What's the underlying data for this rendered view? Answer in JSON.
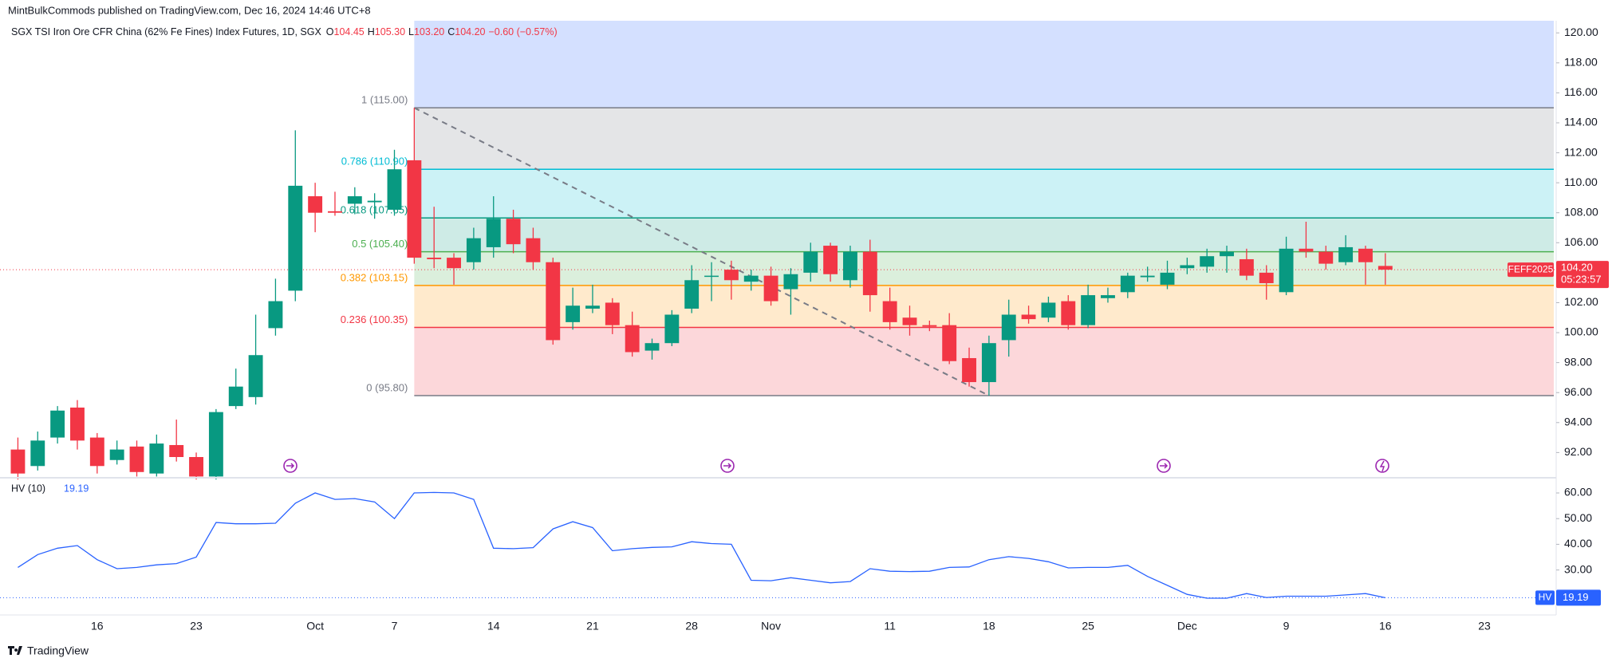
{
  "header": {
    "publisher": "MintBulkCommods published on TradingView.com, Dec 16, 2024 14:46 UTC+8",
    "logo": "TradingView"
  },
  "chart_data": [
    {
      "type": "candlestick",
      "title": "SGX TSI Iron Ore CFR China (62% Fe Fines) Index Futures, 1D, SGX",
      "legend_values": [
        {
          "key": "O",
          "value": "104.45"
        },
        {
          "key": "H",
          "value": "105.30"
        },
        {
          "key": "L",
          "value": "103.20"
        },
        {
          "key": "C",
          "value": "104.20"
        }
      ],
      "change": "−0.60 (−0.57%)",
      "up_color": "#089981",
      "down_color": "#f23645",
      "categories": [
        null,
        null,
        null,
        null,
        "16",
        null,
        null,
        null,
        null,
        "23",
        null,
        null,
        null,
        null,
        null,
        "Oct",
        null,
        null,
        null,
        "7",
        null,
        null,
        null,
        null,
        "14",
        null,
        null,
        null,
        null,
        "21",
        null,
        null,
        null,
        null,
        "28",
        null,
        null,
        null,
        "Nov",
        null,
        null,
        null,
        null,
        null,
        "11",
        null,
        null,
        null,
        null,
        "18",
        null,
        null,
        null,
        null,
        "25",
        null,
        null,
        null,
        null,
        "Dec",
        null,
        null,
        null,
        null,
        "9",
        null,
        null,
        null,
        null,
        "16",
        null,
        null,
        null,
        null,
        "23",
        null,
        null,
        null
      ],
      "open": [
        92.2,
        91.1,
        93.0,
        95.0,
        93.0,
        91.5,
        92.4,
        90.6,
        92.5,
        91.7,
        90.4,
        95.1,
        95.7,
        100.3,
        102.8,
        109.1,
        108.1,
        108.6,
        108.7,
        108.2,
        111.5,
        105.0,
        105.0,
        104.7,
        105.7,
        107.6,
        106.3,
        104.7,
        100.7,
        101.6,
        102.0,
        100.5,
        98.8,
        99.3,
        101.6,
        103.8,
        104.2,
        103.4,
        103.8,
        102.9,
        104.0,
        105.8,
        103.5,
        105.4,
        102.1,
        101.0,
        100.5,
        100.5,
        98.3,
        96.7,
        99.5,
        101.2,
        101.0,
        102.1,
        100.5,
        102.3,
        102.7,
        103.7,
        103.2,
        104.3,
        104.4,
        105.1,
        104.9,
        104.0,
        102.7,
        105.6,
        105.4,
        104.7,
        105.6,
        104.45,
        null,
        null,
        null,
        null,
        null,
        null,
        null,
        null
      ],
      "high": [
        93.0,
        93.4,
        95.1,
        95.5,
        93.3,
        92.8,
        92.8,
        93.2,
        94.2,
        92.0,
        94.9,
        97.6,
        101.2,
        103.6,
        113.5,
        110.0,
        109.4,
        109.7,
        109.3,
        112.2,
        115.0,
        108.4,
        105.3,
        107.0,
        109.1,
        108.2,
        107.0,
        105.0,
        103.0,
        103.2,
        102.3,
        101.4,
        99.6,
        101.5,
        104.5,
        104.7,
        104.8,
        104.2,
        104.4,
        104.3,
        106.0,
        106.0,
        105.8,
        106.2,
        103.0,
        101.8,
        100.8,
        101.3,
        99.0,
        99.8,
        102.2,
        101.8,
        102.4,
        102.5,
        103.2,
        103.0,
        104.0,
        104.4,
        104.8,
        105.0,
        105.6,
        105.8,
        105.6,
        104.5,
        106.4,
        107.4,
        105.8,
        106.5,
        105.8,
        105.3,
        null,
        null,
        null,
        null,
        null,
        null,
        null,
        null
      ],
      "low": [
        90.2,
        90.8,
        92.6,
        92.2,
        90.6,
        91.2,
        90.4,
        90.4,
        91.4,
        90.2,
        90.2,
        94.9,
        95.2,
        99.8,
        102.1,
        106.7,
        107.8,
        107.9,
        107.6,
        107.8,
        104.6,
        104.3,
        103.2,
        104.2,
        105.0,
        105.3,
        104.2,
        99.2,
        100.2,
        101.3,
        99.9,
        98.4,
        98.2,
        99.1,
        101.3,
        102.1,
        102.2,
        102.8,
        101.8,
        101.2,
        103.4,
        103.4,
        103.0,
        101.4,
        100.2,
        99.8,
        100.1,
        97.9,
        96.4,
        95.8,
        98.4,
        100.6,
        100.7,
        100.2,
        100.3,
        102.0,
        102.3,
        103.4,
        102.9,
        103.9,
        104.0,
        104.0,
        103.5,
        102.2,
        102.5,
        105.0,
        104.2,
        104.5,
        103.2,
        103.2,
        null,
        null,
        null,
        null,
        null,
        null,
        null,
        null
      ],
      "close": [
        90.6,
        92.8,
        94.8,
        92.8,
        91.1,
        92.2,
        90.7,
        92.6,
        91.7,
        90.4,
        94.7,
        96.4,
        98.5,
        102.1,
        109.8,
        108.0,
        108.0,
        109.1,
        108.8,
        110.9,
        105.0,
        104.9,
        104.3,
        106.3,
        107.6,
        105.9,
        104.7,
        99.5,
        101.8,
        101.8,
        100.5,
        98.7,
        99.3,
        101.2,
        103.5,
        103.8,
        103.5,
        103.8,
        102.1,
        103.9,
        105.4,
        103.9,
        105.4,
        102.5,
        100.7,
        100.5,
        100.4,
        98.1,
        96.7,
        99.3,
        101.2,
        100.9,
        102.0,
        100.5,
        102.5,
        102.5,
        103.8,
        103.8,
        104.0,
        104.5,
        105.1,
        105.4,
        103.8,
        103.3,
        105.6,
        105.4,
        104.6,
        105.7,
        104.7,
        104.2,
        null,
        null,
        null,
        null,
        null,
        null,
        null,
        null
      ],
      "ylim": [
        90.37,
        120.81
      ],
      "yticks": [
        {
          "value": 92,
          "label": "92.00"
        },
        {
          "value": 94,
          "label": "94.00"
        },
        {
          "value": 96,
          "label": "96.00"
        },
        {
          "value": 98,
          "label": "98.00"
        },
        {
          "value": 100,
          "label": "100.00"
        },
        {
          "value": 102,
          "label": "102.00"
        },
        {
          "value": 104,
          "label": "104.00"
        },
        {
          "value": 106,
          "label": "106.00"
        },
        {
          "value": 108,
          "label": "108.00"
        },
        {
          "value": 110,
          "label": "110.00"
        },
        {
          "value": 112,
          "label": "112.00"
        },
        {
          "value": 114,
          "label": "114.00"
        },
        {
          "value": 116,
          "label": "116.00"
        },
        {
          "value": 118,
          "label": "118.00"
        },
        {
          "value": 120,
          "label": "120.00"
        }
      ],
      "grid": false,
      "last_price": {
        "value": 104.2,
        "label": "104.20",
        "symbol": "FEFF2025",
        "countdown": "05:23:57",
        "color": "#f23645"
      },
      "fib_top_color": "#2962ff",
      "fib_levels": [
        {
          "label": "1 (115.00)",
          "value": 115.0,
          "color": "#787b86"
        },
        {
          "label": "0.786 (110.90)",
          "value": 110.9,
          "color": "#00bcd4"
        },
        {
          "label": "0.618 (107.65)",
          "value": 107.65,
          "color": "#089981"
        },
        {
          "label": "0.5 (105.40)",
          "value": 105.4,
          "color": "#4caf50"
        },
        {
          "label": "0.382 (103.15)",
          "value": 103.15,
          "color": "#ff9800"
        },
        {
          "label": "0.236 (100.35)",
          "value": 100.35,
          "color": "#f23645"
        },
        {
          "label": "0 (95.80)",
          "value": 95.8,
          "color": "#787b86"
        }
      ],
      "trend_line": [
        115.0,
        95.8
      ]
    },
    {
      "type": "line",
      "title": "HV (10)",
      "last_label": "19.19",
      "tag": "HV",
      "color": "#2962ff",
      "values": [
        31,
        36,
        38.5,
        39.5,
        34,
        30.5,
        31,
        32,
        32.5,
        35,
        48.5,
        48,
        48,
        48.2,
        56,
        60,
        57.5,
        57.8,
        56.5,
        50,
        60,
        60.2,
        60,
        57.5,
        38.5,
        38.3,
        38.7,
        46,
        48.8,
        46.5,
        37.5,
        38.3,
        38.8,
        39,
        41,
        40.3,
        40,
        26,
        25.8,
        27,
        26,
        25,
        25.5,
        30.5,
        29.5,
        29.4,
        29.5,
        31,
        31.2,
        34,
        35.2,
        34.5,
        33.2,
        30.8,
        31,
        31,
        31.8,
        27.5,
        24,
        20.5,
        19,
        19,
        20.8,
        19.3,
        19.8,
        19.8,
        19.8,
        20.3,
        20.8,
        19.19,
        null,
        null,
        null,
        null,
        null,
        null,
        null,
        null
      ],
      "ylim": [
        12.8,
        65.6
      ],
      "yticks": [
        {
          "value": 30,
          "label": "30.00"
        },
        {
          "value": 40,
          "label": "40.00"
        },
        {
          "value": 50,
          "label": "50.00"
        },
        {
          "value": 60,
          "label": "60.00"
        }
      ]
    }
  ]
}
